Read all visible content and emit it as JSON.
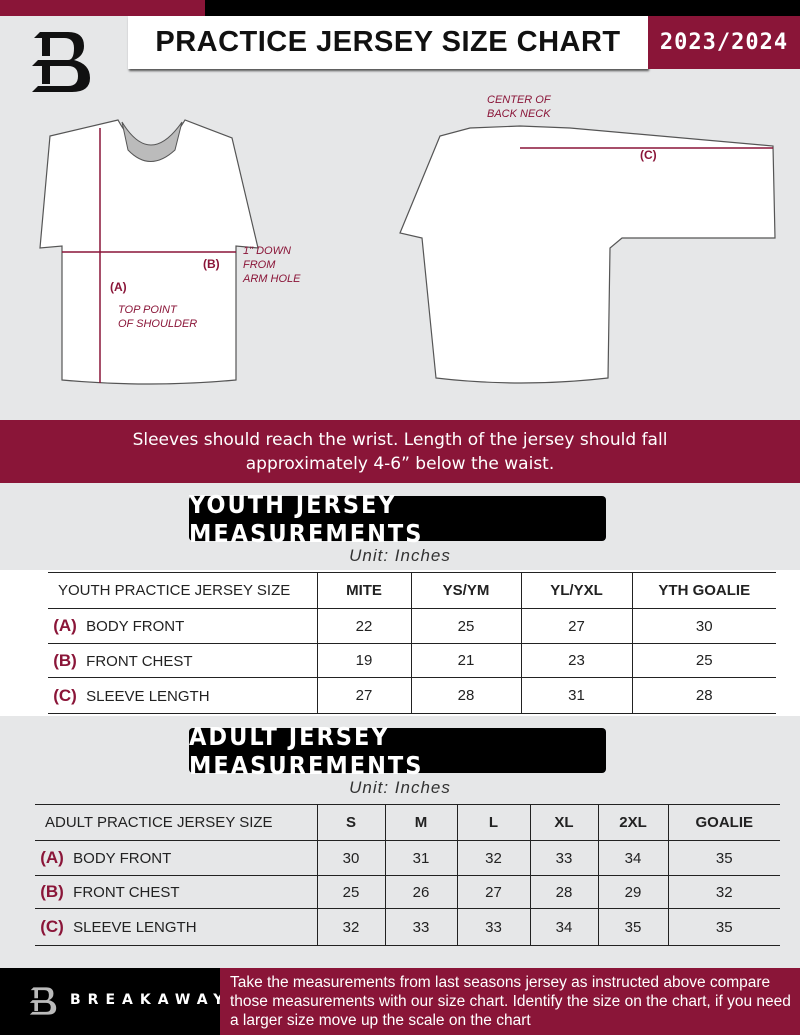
{
  "header": {
    "title": "PRACTICE JERSEY SIZE CHART",
    "season": "2023/2024"
  },
  "diagram": {
    "front_label_a": "(A)",
    "front_label_a_note": "TOP POINT\nOF SHOULDER",
    "front_label_b": "(B)",
    "front_label_b_note": "1\" DOWN\nFROM\nARM HOLE",
    "back_note": "CENTER OF\nBACK NECK",
    "back_label_c": "(C)"
  },
  "instructions": {
    "line1": "Sleeves should reach the wrist. Length of the jersey should fall",
    "line2": "approximately 4-6” below the waist."
  },
  "youth": {
    "heading": "YOUTH JERSEY MEASUREMENTS",
    "unit": "Unit: Inches",
    "header_label": "YOUTH PRACTICE JERSEY SIZE",
    "sizes": [
      "MITE",
      "YS/YM",
      "YL/YXL",
      "YTH GOALIE"
    ],
    "rows": [
      {
        "letter": "(A)",
        "label": "BODY FRONT",
        "values": [
          "22",
          "25",
          "27",
          "30"
        ]
      },
      {
        "letter": "(B)",
        "label": "FRONT CHEST",
        "values": [
          "19",
          "21",
          "23",
          "25"
        ]
      },
      {
        "letter": "(C)",
        "label": "SLEEVE LENGTH",
        "values": [
          "27",
          "28",
          "31",
          "28"
        ]
      }
    ]
  },
  "adult": {
    "heading": "ADULT JERSEY MEASUREMENTS",
    "unit": "Unit: Inches",
    "header_label": "ADULT PRACTICE JERSEY SIZE",
    "sizes": [
      "S",
      "M",
      "L",
      "XL",
      "2XL",
      "GOALIE"
    ],
    "rows": [
      {
        "letter": "(A)",
        "label": "BODY FRONT",
        "values": [
          "30",
          "31",
          "32",
          "33",
          "34",
          "35"
        ]
      },
      {
        "letter": "(B)",
        "label": "FRONT CHEST",
        "values": [
          "25",
          "26",
          "27",
          "28",
          "29",
          "32"
        ]
      },
      {
        "letter": "(C)",
        "label": "SLEEVE LENGTH",
        "values": [
          "32",
          "33",
          "33",
          "34",
          "35",
          "35"
        ]
      }
    ]
  },
  "footer": {
    "brand": "BREAKAWAY",
    "text": "Take the measurements from last seasons jersey as instructed above compare those measurements  with our size chart. Identify the size on the chart, if you need a larger size move up the scale on the chart"
  },
  "colors": {
    "accent": "#8a1538",
    "background": "#e6e7e8"
  }
}
